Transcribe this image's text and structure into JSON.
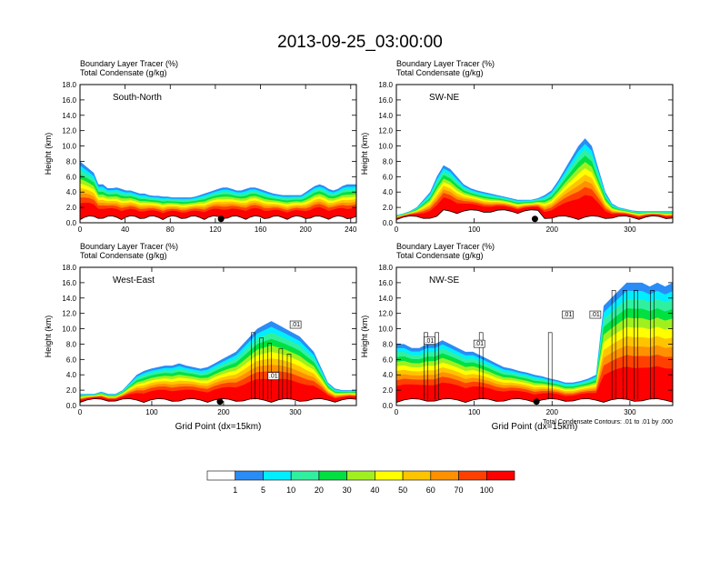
{
  "title": "2013-09-25_03:00:00",
  "chart_data": [
    {
      "type": "heatmap",
      "panel_label": "South-North",
      "header_line1": "Boundary Layer Tracer   (%)",
      "header_line2": "Total Condensate   (g/kg)",
      "ylabel": "Height (km)",
      "xlabel": "",
      "xlim": [
        0,
        245
      ],
      "ylim": [
        0,
        18
      ],
      "xticks": [
        0,
        40,
        80,
        120,
        160,
        200,
        240
      ],
      "yticks": [
        "0.0",
        "2.0",
        "4.0",
        "6.0",
        "8.0",
        "10.0",
        "12.0",
        "14.0",
        "16.0",
        "18.0"
      ],
      "marker_x": 125,
      "contours": [
        2,
        3,
        3,
        4,
        3,
        3,
        3,
        3,
        3,
        2,
        3,
        3,
        3,
        3,
        3,
        3,
        2,
        2,
        2,
        2,
        2,
        2,
        2,
        2,
        2,
        2,
        2,
        2,
        2,
        2,
        2,
        2,
        2,
        2,
        2,
        2,
        2,
        2,
        2,
        2,
        2,
        2,
        2,
        2,
        2,
        2,
        2,
        2,
        2,
        2,
        3,
        3,
        2,
        2,
        2,
        2,
        2,
        2,
        2,
        2,
        2
      ],
      "tracer_top_km": [
        8,
        7.5,
        7,
        6.5,
        5,
        5,
        4.5,
        4.5,
        4.6,
        4.4,
        4.2,
        4.2,
        4.0,
        3.8,
        3.8,
        3.6,
        3.5,
        3.5,
        3.4,
        3.4,
        3.3,
        3.3,
        3.3,
        3.3,
        3.3,
        3.4,
        3.6,
        3.8,
        4,
        4.2,
        4.4,
        4.6,
        4.6,
        4.4,
        4.2,
        4.2,
        4.4,
        4.6,
        4.6,
        4.4,
        4.2,
        4.0,
        3.8,
        3.7,
        3.6,
        3.6,
        3.6,
        3.6,
        3.6,
        4.0,
        4.4,
        4.8,
        5.0,
        4.8,
        4.4,
        4.2,
        4.4,
        4.8,
        5.0,
        5.0,
        5.0
      ]
    },
    {
      "type": "heatmap",
      "panel_label": "SW-NE",
      "header_line1": "Boundary Layer Tracer   (%)",
      "header_line2": "Total Condensate   (g/kg)",
      "ylabel": "Height (km)",
      "xlabel": "",
      "xlim": [
        0,
        355
      ],
      "ylim": [
        0,
        18
      ],
      "xticks": [
        0,
        100,
        200,
        300
      ],
      "yticks": [
        "0.0",
        "2.0",
        "4.0",
        "6.0",
        "8.0",
        "10.0",
        "12.0",
        "14.0",
        "16.0",
        "18.0"
      ],
      "marker_x": 178,
      "tracer_top_km": [
        1.0,
        1.2,
        1.5,
        2,
        3,
        4,
        6,
        7.5,
        7,
        6,
        5,
        4.5,
        4.2,
        4.0,
        3.8,
        3.6,
        3.4,
        3.2,
        3,
        3,
        3,
        3.2,
        3.6,
        4.2,
        5.5,
        7,
        8.5,
        10,
        11,
        10,
        7,
        4,
        2.5,
        2,
        1.8,
        1.6,
        1.5,
        1.5,
        1.5,
        1.5,
        1.5,
        1.5
      ]
    },
    {
      "type": "heatmap",
      "panel_label": "West-East",
      "header_line1": "Boundary Layer Tracer   (%)",
      "header_line2": "Total Condensate   (g/kg)",
      "ylabel": "Height (km)",
      "xlabel": "Grid Point (dx=15km)",
      "xlim": [
        0,
        385
      ],
      "ylim": [
        0,
        18
      ],
      "xticks": [
        0,
        100,
        200,
        300
      ],
      "yticks": [
        "0.0",
        "2.0",
        "4.0",
        "6.0",
        "8.0",
        "10.0",
        "12.0",
        "14.0",
        "16.0",
        "18.0"
      ],
      "marker_x": 195,
      "contour_labels": [
        ".01",
        ".01"
      ],
      "tracer_top_km": [
        1.5,
        1.5,
        1.5,
        1.8,
        1.5,
        1.5,
        2,
        3,
        4,
        4.5,
        4.8,
        5,
        5.2,
        5.2,
        5.5,
        5.2,
        5,
        4.8,
        5,
        5.5,
        6,
        6.5,
        7,
        8,
        9,
        10,
        10.5,
        11,
        10.5,
        10,
        9.5,
        9,
        8,
        7,
        5,
        3,
        2.2,
        2,
        2,
        2
      ]
    },
    {
      "type": "heatmap",
      "panel_label": "NW-SE",
      "header_line1": "Boundary Layer Tracer   (%)",
      "header_line2": "Total Condensate   (g/kg)",
      "ylabel": "Height (km)",
      "xlabel": "Grid Point (dx=15km)",
      "xlim": [
        0,
        355
      ],
      "ylim": [
        0,
        18
      ],
      "xticks": [
        0,
        100,
        200,
        300
      ],
      "yticks": [
        "0.0",
        "2.0",
        "4.0",
        "6.0",
        "8.0",
        "10.0",
        "12.0",
        "14.0",
        "16.0",
        "18.0"
      ],
      "marker_x": 180,
      "contour_labels": [
        ".01",
        ".01",
        ".01",
        ".01"
      ],
      "contour_note": "Total Condensate Contours: .01 to .01 by .000",
      "tracer_top_km": [
        8,
        8,
        7.5,
        7.5,
        8,
        8,
        8.5,
        8,
        7.5,
        7,
        7,
        6.5,
        6,
        5.5,
        5,
        4.8,
        4.5,
        4.3,
        4.0,
        3.8,
        3.5,
        3.3,
        3.0,
        3.0,
        3.2,
        3.5,
        4,
        13,
        14,
        15,
        16,
        16,
        16,
        15.5,
        16,
        15.5,
        16
      ]
    }
  ],
  "colorbar": {
    "labels": [
      "1",
      "5",
      "10",
      "20",
      "30",
      "40",
      "50",
      "60",
      "70",
      "100"
    ],
    "colors": [
      "#ffffff",
      "#2a8cf5",
      "#00eeff",
      "#30f0a0",
      "#00e040",
      "#a0f020",
      "#ffff00",
      "#ffc400",
      "#ff9000",
      "#ff4000",
      "#ff0000"
    ]
  }
}
